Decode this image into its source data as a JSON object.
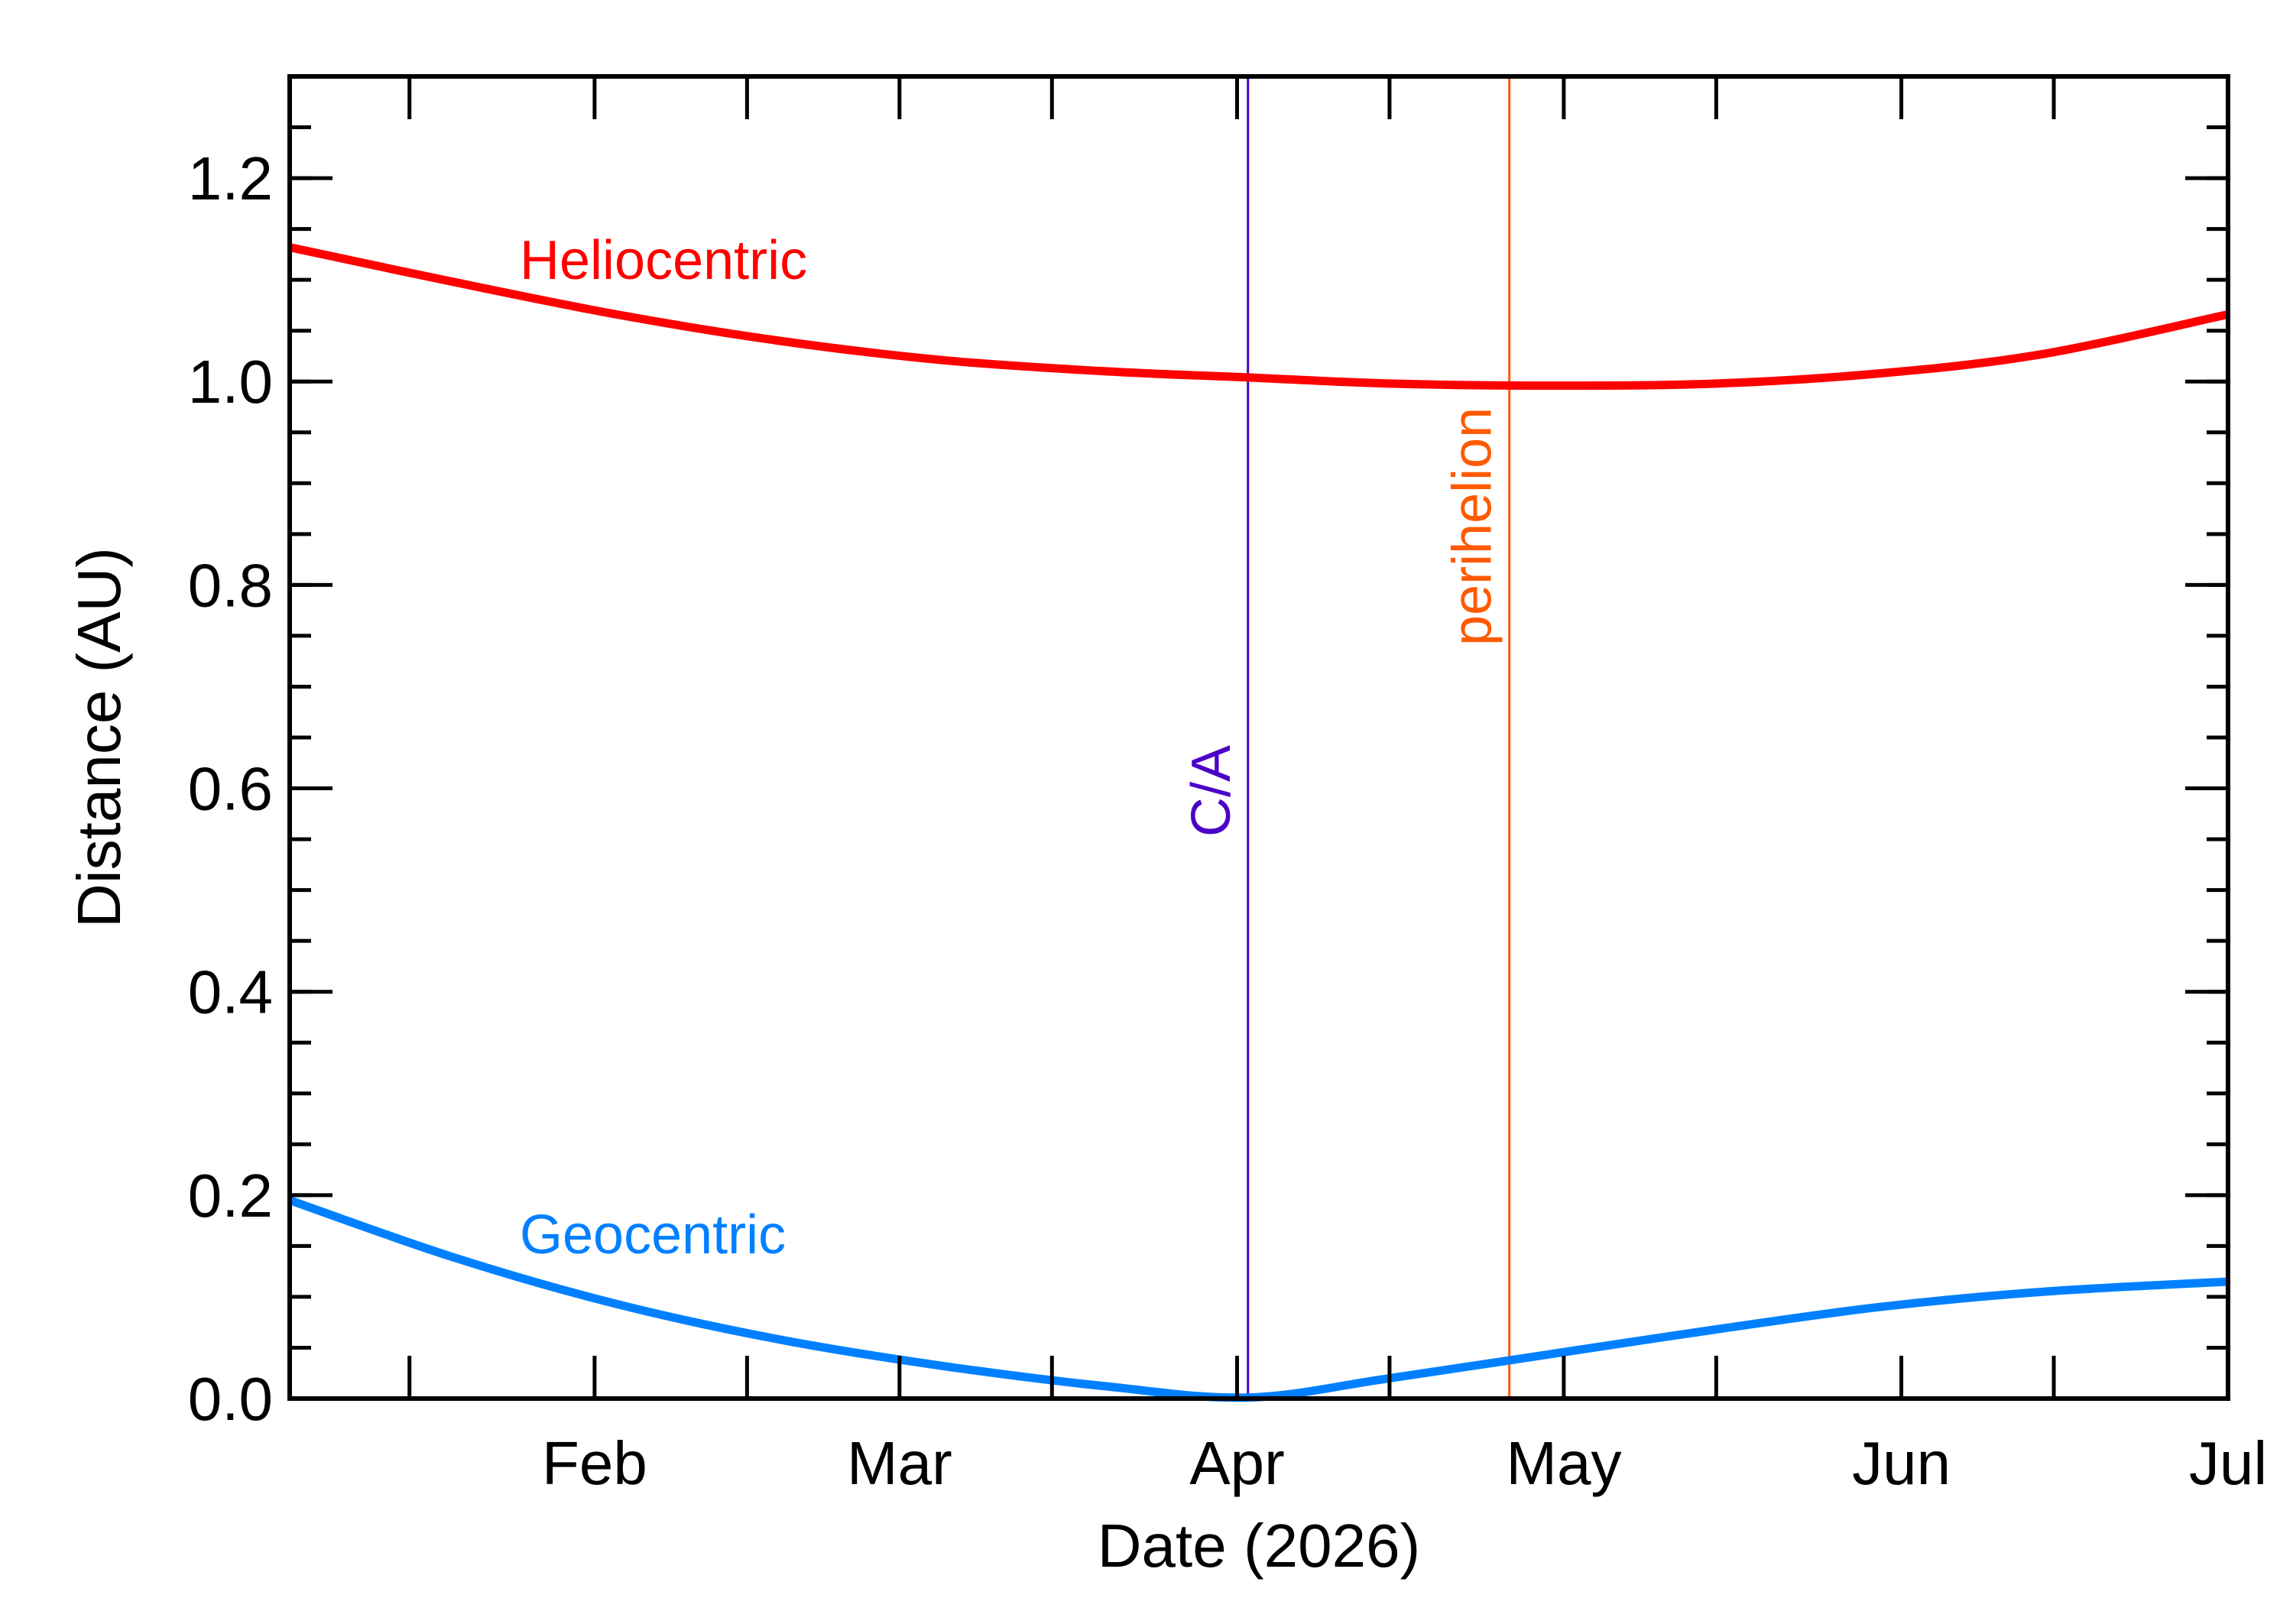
{
  "chart_data": {
    "type": "line",
    "title": "",
    "xlabel": "Date (2026)",
    "ylabel": "Distance (AU)",
    "x_type": "date",
    "xlim": [
      "2026-01-04",
      "2026-07-01"
    ],
    "ylim": [
      0.0,
      1.3
    ],
    "x_ticks": [
      {
        "date": "2026-02-01",
        "label": "Feb"
      },
      {
        "date": "2026-03-01",
        "label": "Mar"
      },
      {
        "date": "2026-04-01",
        "label": "Apr"
      },
      {
        "date": "2026-05-01",
        "label": "May"
      },
      {
        "date": "2026-06-01",
        "label": "Jun"
      },
      {
        "date": "2026-07-01",
        "label": "Jul"
      }
    ],
    "x_minor_ticks": [
      "2026-01-15",
      "2026-02-15",
      "2026-03-15",
      "2026-04-15",
      "2026-05-15",
      "2026-06-15"
    ],
    "y_ticks": [
      {
        "value": 0.0,
        "label": "0.0"
      },
      {
        "value": 0.2,
        "label": "0.2"
      },
      {
        "value": 0.4,
        "label": "0.4"
      },
      {
        "value": 0.6,
        "label": "0.6"
      },
      {
        "value": 0.8,
        "label": "0.8"
      },
      {
        "value": 1.0,
        "label": "1.0"
      },
      {
        "value": 1.2,
        "label": "1.2"
      }
    ],
    "y_minor_step": 0.05,
    "grid": false,
    "series": [
      {
        "name": "Heliocentric",
        "color": "#ff0000",
        "points": [
          [
            "2026-01-04",
            1.132
          ],
          [
            "2026-01-19",
            1.098
          ],
          [
            "2026-02-03",
            1.066
          ],
          [
            "2026-02-18",
            1.04
          ],
          [
            "2026-03-05",
            1.021
          ],
          [
            "2026-03-20",
            1.01
          ],
          [
            "2026-04-02",
            1.004
          ],
          [
            "2026-04-15",
            0.998
          ],
          [
            "2026-04-30",
            0.996
          ],
          [
            "2026-05-15",
            0.998
          ],
          [
            "2026-05-30",
            1.008
          ],
          [
            "2026-06-14",
            1.027
          ],
          [
            "2026-07-01",
            1.066
          ]
        ]
      },
      {
        "name": "Geocentric",
        "color": "#0080ff",
        "points": [
          [
            "2026-01-04",
            0.195
          ],
          [
            "2026-01-19",
            0.139
          ],
          [
            "2026-02-03",
            0.093
          ],
          [
            "2026-02-18",
            0.058
          ],
          [
            "2026-03-05",
            0.032
          ],
          [
            "2026-03-20",
            0.012
          ],
          [
            "2026-04-02",
            0.001
          ],
          [
            "2026-04-15",
            0.02
          ],
          [
            "2026-04-30",
            0.044
          ],
          [
            "2026-05-15",
            0.068
          ],
          [
            "2026-05-30",
            0.09
          ],
          [
            "2026-06-14",
            0.105
          ],
          [
            "2026-07-01",
            0.115
          ]
        ]
      }
    ],
    "vertical_markers": [
      {
        "date": "2026-04-02",
        "label": "C/A",
        "color": "#4b00c8"
      },
      {
        "date": "2026-04-26",
        "label": "perihelion",
        "color": "#ff5a00"
      }
    ]
  }
}
